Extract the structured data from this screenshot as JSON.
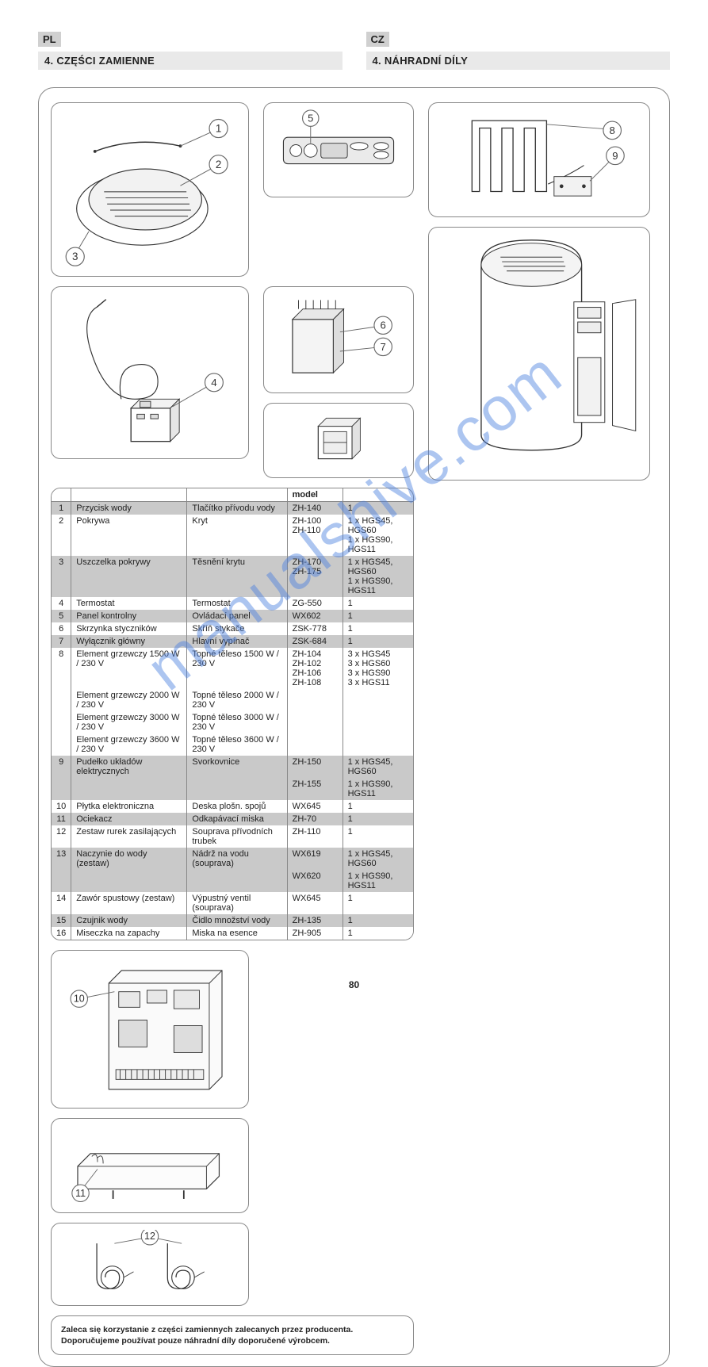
{
  "page_number": "80",
  "watermark": "manualshive.com",
  "lang_left": {
    "code": "PL",
    "title": "4. CZĘŚCI ZAMIENNE"
  },
  "lang_right": {
    "code": "CZ",
    "title": "4. NÁHRADNÍ DÍLY"
  },
  "note": {
    "pl_bold": "Zaleca się korzystanie z części zamiennych zalecanych przez producenta.",
    "cz_bold": "Doporučujeme používat pouze náhradní díly doporučené výrobcem."
  },
  "callouts": {
    "c1": "1",
    "c2": "2",
    "c3": "3",
    "c4": "4",
    "c5": "5",
    "c6": "6",
    "c7": "7",
    "c8": "8",
    "c9": "9",
    "c10": "10",
    "c11": "11",
    "c12": "12"
  },
  "table": {
    "head_model": "model",
    "rows": [
      {
        "num": "1",
        "pl": "Przycisk wody",
        "cz": "Tlačítko přívodu vody",
        "code": "ZH-140",
        "qty": "1",
        "shade": "odd"
      },
      {
        "num": "2",
        "pl": "Pokrywa",
        "cz": "Kryt",
        "models": [
          "ZH-100",
          "ZH-110"
        ],
        "qtyrows": [
          "1 x HGS45, HGS60",
          "1 x HGS90, HGS11"
        ],
        "shade": "even"
      },
      {
        "num": "3",
        "pl": "Uszczelka pokrywy",
        "cz": "Těsnění krytu",
        "models": [
          "ZH-170",
          "ZH-175"
        ],
        "qtyrows": [
          "1 x HGS45, HGS60",
          "1 x HGS90, HGS11"
        ],
        "shade": "odd"
      },
      {
        "num": "4",
        "pl": "Termostat",
        "cz": "Termostat",
        "code": "ZG-550",
        "qty": "1",
        "shade": "even"
      },
      {
        "num": "5",
        "pl": "Panel kontrolny",
        "cz": "Ovládací panel",
        "code": "WX602",
        "qty": "1",
        "shade": "odd"
      },
      {
        "num": "6",
        "pl": "Skrzynka styczników",
        "cz": "Skříň stykače",
        "code": "ZSK-778",
        "qty": "1",
        "shade": "even"
      },
      {
        "num": "7",
        "pl": "Wyłącznik główny",
        "cz": "Hlavní vypínač",
        "code": "ZSK-684",
        "qty": "1",
        "shade": "odd"
      },
      {
        "num": "8",
        "pl": "Element grzewczy 1500 W / 230 V",
        "cz": "Topné těleso 1500 W / 230 V",
        "models": [
          "ZH-104",
          "ZH-102",
          "ZH-106",
          "ZH-108"
        ],
        "qtyrows": [
          "3 x HGS45",
          "3 x HGS60",
          "3 x HGS90",
          "3 x HGS11"
        ],
        "shade": "even"
      },
      {
        "num": "",
        "pl": "Element grzewczy 2000 W / 230 V",
        "cz": "Topné těleso 2000 W / 230 V",
        "shade": "even",
        "combine": true
      },
      {
        "num": "",
        "pl": "Element grzewczy 3000 W / 230 V",
        "cz": "Topné těleso 3000 W / 230 V",
        "shade": "even",
        "combine": true
      },
      {
        "num": "",
        "pl": "Element grzewczy 3600 W / 230 V",
        "cz": "Topné těleso 3600 W / 230 V",
        "shade": "even",
        "combine": true
      },
      {
        "num": "9",
        "pl": "Pudełko układów elektrycznych",
        "cz": "Svorkovnice",
        "code": "ZH-150",
        "qty": "1 x HGS45, HGS60",
        "shade": "odd"
      },
      {
        "num": "",
        "pl": "",
        "cz": "",
        "code": "ZH-155",
        "qty": "1 x HGS90, HGS11",
        "shade": "odd",
        "combine": true
      },
      {
        "num": "10",
        "pl": "Płytka elektroniczna",
        "cz": "Deska plošn. spojů",
        "code": "WX645",
        "qty": "1",
        "shade": "even"
      },
      {
        "num": "11",
        "pl": "Ociekacz",
        "cz": "Odkapávací miska",
        "code": "ZH-70",
        "qty": "1",
        "shade": "odd"
      },
      {
        "num": "12",
        "pl": "Zestaw rurek zasilających",
        "cz": "Souprava přívodních trubek",
        "code": "ZH-110",
        "qty": "1",
        "shade": "even"
      },
      {
        "num": "13",
        "pl": "Naczynie do wody (zestaw)",
        "cz": "Nádrž na vodu (souprava)",
        "code": "WX619",
        "qty": "1 x HGS45, HGS60",
        "shade": "odd"
      },
      {
        "num": "",
        "pl": "",
        "cz": "",
        "code": "WX620",
        "qty": "1 x HGS90, HGS11",
        "shade": "odd",
        "combine": true
      },
      {
        "num": "14",
        "pl": "Zawór spustowy (zestaw)",
        "cz": "Výpustný ventil (souprava)",
        "code": "WX645",
        "qty": "1",
        "shade": "even"
      },
      {
        "num": "15",
        "pl": "Czujnik wody",
        "cz": "Čidlo množství vody",
        "code": "ZH-135",
        "qty": "1",
        "shade": "odd"
      },
      {
        "num": "16",
        "pl": "Miseczka na zapachy",
        "cz": "Miska na esence",
        "code": "ZH-905",
        "qty": "1",
        "shade": "even"
      }
    ]
  }
}
